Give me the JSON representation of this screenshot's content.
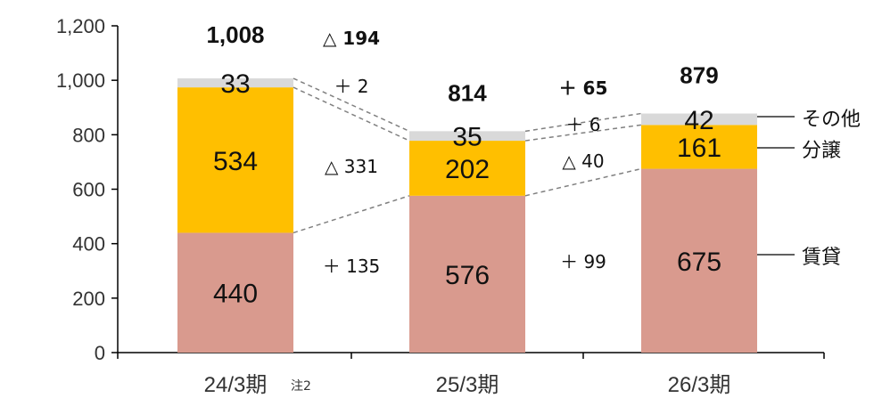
{
  "chart_data": {
    "type": "bar",
    "stacked": true,
    "categories": [
      "24/3期",
      "25/3期",
      "26/3期"
    ],
    "category_note": {
      "index": 0,
      "text": "注2"
    },
    "series": [
      {
        "name": "賃貸",
        "values": [
          440,
          576,
          675
        ],
        "color": "#d99a8e"
      },
      {
        "name": "分譲",
        "values": [
          534,
          202,
          161
        ],
        "color": "#ffbf00"
      },
      {
        "name": "その他",
        "values": [
          33,
          35,
          42
        ],
        "color": "#d9d9d9"
      }
    ],
    "totals": [
      "1,008",
      "814",
      "879"
    ],
    "segment_labels": [
      [
        "440",
        "534",
        "33"
      ],
      [
        "576",
        "202",
        "35"
      ],
      [
        "675",
        "161",
        "42"
      ]
    ],
    "changes": [
      {
        "total": "△ 194",
        "segments": [
          "＋ 135",
          "△ 331",
          "＋ 2"
        ]
      },
      {
        "total": "＋ 65",
        "segments": [
          "＋ 99",
          "△ 40",
          "＋ 6"
        ]
      }
    ],
    "ylim": [
      0,
      1200
    ],
    "yticks": [
      0,
      200,
      400,
      600,
      800,
      1000,
      1200
    ],
    "ytick_labels": [
      "0",
      "200",
      "400",
      "600",
      "800",
      "1,000",
      "1,200"
    ],
    "legend_position": "right",
    "grid": false
  }
}
